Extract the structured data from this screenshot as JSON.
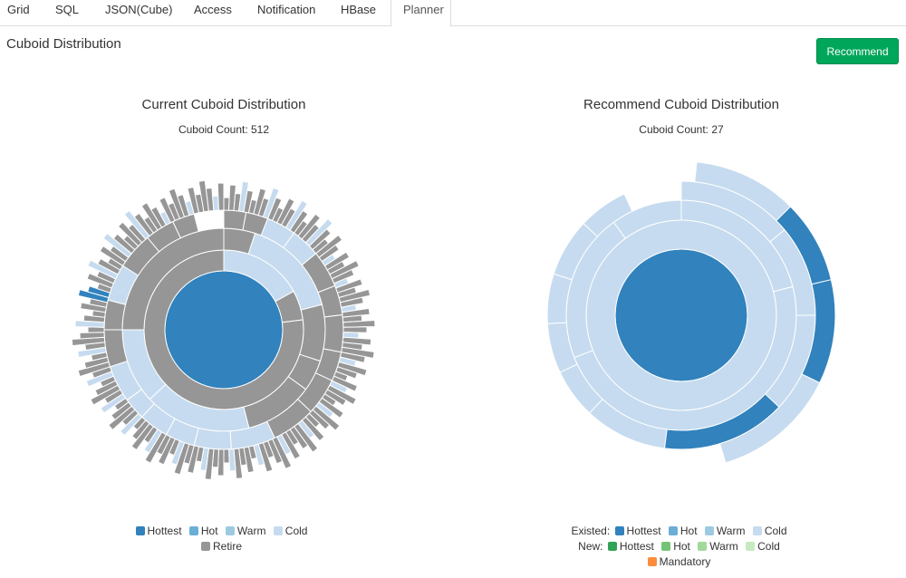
{
  "tabs": [
    "Grid",
    "SQL",
    "JSON(Cube)",
    "Access",
    "Notification",
    "HBase",
    "Planner"
  ],
  "active_tab": "Planner",
  "section_title": "Cuboid Distribution",
  "recommend_button": "Recommend",
  "current": {
    "title": "Current Cuboid Distribution",
    "count_label": "Cuboid Count: 512",
    "legend": {
      "row1": [
        {
          "label": "Hottest",
          "color": "#3182bd"
        },
        {
          "label": "Hot",
          "color": "#6baed6"
        },
        {
          "label": "Warm",
          "color": "#9ecae1"
        },
        {
          "label": "Cold",
          "color": "#c6dbef"
        }
      ],
      "row2": [
        {
          "label": "Retire",
          "color": "#969696"
        }
      ]
    }
  },
  "recommend": {
    "title": "Recommend Cuboid Distribution",
    "count_label": "Cuboid Count: 27",
    "legend": {
      "existed_label": "Existed:",
      "existed": [
        {
          "label": "Hottest",
          "color": "#3182bd"
        },
        {
          "label": "Hot",
          "color": "#6baed6"
        },
        {
          "label": "Warm",
          "color": "#9ecae1"
        },
        {
          "label": "Cold",
          "color": "#c6dbef"
        }
      ],
      "new_label": "New:",
      "new": [
        {
          "label": "Hottest",
          "color": "#31a354"
        },
        {
          "label": "Hot",
          "color": "#74c476"
        },
        {
          "label": "Warm",
          "color": "#a1d99b"
        },
        {
          "label": "Cold",
          "color": "#c7e9c0"
        }
      ],
      "mandatory": {
        "label": "Mandatory",
        "color": "#fd8d3c"
      }
    }
  },
  "chart_data": [
    {
      "type": "sunburst",
      "title": "Current Cuboid Distribution",
      "cuboid_count": 512,
      "levels": [
        {
          "depth": 1,
          "segments": [
            {
              "share": 1.0,
              "category": "Hottest"
            }
          ]
        },
        {
          "depth": 2,
          "segments": [
            {
              "share": 0.17,
              "category": "Cold"
            },
            {
              "share": 0.06,
              "category": "Retire"
            },
            {
              "share": 0.77,
              "category": "Retire"
            }
          ]
        },
        {
          "depth": 3,
          "segments": [
            {
              "share": 0.05,
              "category": "Retire"
            },
            {
              "share": 0.16,
              "category": "Cold"
            },
            {
              "share": 0.09,
              "category": "Retire"
            },
            {
              "share": 0.05,
              "category": "Retire"
            },
            {
              "share": 0.11,
              "category": "Retire"
            },
            {
              "share": 0.17,
              "category": "Cold"
            },
            {
              "share": 0.12,
              "category": "Cold"
            },
            {
              "share": 0.25,
              "category": "Retire"
            }
          ]
        },
        {
          "depth": 4,
          "segments": [
            {
              "share": 0.03,
              "category": "Retire"
            },
            {
              "share": 0.03,
              "category": "Retire"
            },
            {
              "share": 0.04,
              "category": "Cold"
            },
            {
              "share": 0.04,
              "category": "Cold"
            },
            {
              "share": 0.05,
              "category": "Retire"
            },
            {
              "share": 0.04,
              "category": "Retire"
            },
            {
              "share": 0.05,
              "category": "Retire"
            },
            {
              "share": 0.04,
              "category": "Retire"
            },
            {
              "share": 0.05,
              "category": "Retire"
            },
            {
              "share": 0.06,
              "category": "Retire"
            },
            {
              "share": 0.06,
              "category": "Cold"
            },
            {
              "share": 0.05,
              "category": "Cold"
            },
            {
              "share": 0.04,
              "category": "Cold"
            },
            {
              "share": 0.04,
              "category": "Cold"
            },
            {
              "share": 0.03,
              "category": "Cold"
            },
            {
              "share": 0.05,
              "category": "Cold"
            },
            {
              "share": 0.05,
              "category": "Retire"
            },
            {
              "share": 0.04,
              "category": "Retire"
            },
            {
              "share": 0.05,
              "category": "Cold"
            },
            {
              "share": 0.05,
              "category": "Retire"
            },
            {
              "share": 0.04,
              "category": "Retire"
            },
            {
              "share": 0.03,
              "category": "Retire"
            }
          ]
        }
      ]
    },
    {
      "type": "sunburst",
      "title": "Recommend Cuboid Distribution",
      "cuboid_count": 27,
      "levels": [
        {
          "depth": 1,
          "segments": [
            {
              "share": 1.0,
              "category": "Existed Hottest"
            }
          ]
        },
        {
          "depth": 2,
          "segments": [
            {
              "share": 1.0,
              "category": "Existed Cold"
            }
          ]
        },
        {
          "depth": 3,
          "segments": [
            {
              "share": 0.21,
              "category": "Existed Cold"
            },
            {
              "share": 0.48,
              "category": "Existed Cold"
            },
            {
              "share": 0.21,
              "category": "Existed Cold"
            },
            {
              "share": 0.1,
              "category": "Existed Cold"
            }
          ]
        },
        {
          "depth": 4,
          "segments": [
            {
              "share": 0.14,
              "category": "Existed Cold"
            },
            {
              "share": 0.11,
              "category": "Existed Cold"
            },
            {
              "share": 0.12,
              "category": "Existed Cold"
            },
            {
              "share": 0.15,
              "category": "Existed Hottest"
            },
            {
              "share": 0.1,
              "category": "Existed Cold"
            },
            {
              "share": 0.06,
              "category": "Existed Cold"
            },
            {
              "share": 0.06,
              "category": "Existed Cold"
            },
            {
              "share": 0.06,
              "category": "Existed Cold"
            },
            {
              "share": 0.07,
              "category": "Existed Cold"
            },
            {
              "share": 0.06,
              "category": "Existed Cold"
            }
          ]
        },
        {
          "depth": 5,
          "segments": [
            {
              "share": 0.25,
              "category": "Existed Cold"
            },
            {
              "share": 0.2,
              "category": "Existed Hottest"
            },
            {
              "share": 0.25,
              "category": "Existed Hottest"
            },
            {
              "share": 0.3,
              "category": "Existed Cold"
            }
          ]
        }
      ]
    }
  ]
}
